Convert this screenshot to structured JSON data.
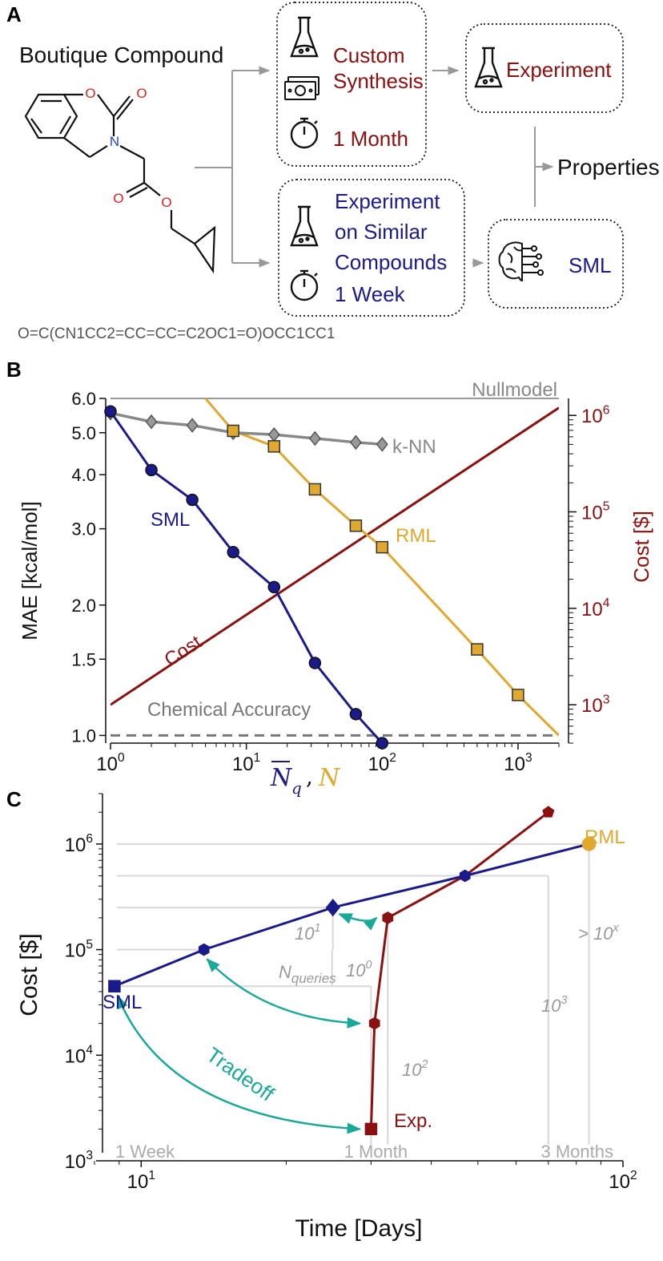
{
  "panel_labels": [
    "A",
    "B",
    "C"
  ],
  "panel_a": {
    "compound_title": "Boutique Compound",
    "smiles": "O=C(CN1CC2=CC=CC=C2OC1=O)OCC1CC1",
    "atom_labels": {
      "o_ring": "O",
      "o_carbonyl": "O",
      "n": "N",
      "o_ester_carbonyl": "O",
      "o_ester": "O"
    },
    "custom_synthesis": [
      "Custom",
      "Synthesis"
    ],
    "one_month": "1 Month",
    "experiment": "Experiment",
    "properties": "Properties",
    "similar": [
      "Experiment",
      "on Similar",
      "Compounds"
    ],
    "one_week": "1 Week",
    "sml": "SML",
    "colors": {
      "dark_red": "#8b1010",
      "navy": "#1a1a8a",
      "gray": "#888888"
    }
  },
  "chart_data": [
    {
      "type": "line",
      "panel": "B",
      "ylabel_left": "MAE [kcal/mol]",
      "ylabel_right": "Cost [$]",
      "xlabel_main": "N",
      "xlabel_sub": "q",
      "xlabel_sep": ",",
      "xlabel_second": "N",
      "x_scale": "log",
      "xlim": [
        1,
        2000
      ],
      "y_scale": "log",
      "ylim": [
        0.96,
        6.0
      ],
      "y2_scale": "log",
      "y2lim": [
        400,
        1500000
      ],
      "x_ticks": [
        {
          "value": 1,
          "base": "10",
          "exp": "0"
        },
        {
          "value": 10,
          "base": "10",
          "exp": "1"
        },
        {
          "value": 100,
          "base": "10",
          "exp": "2"
        },
        {
          "value": 1000,
          "base": "10",
          "exp": "3"
        }
      ],
      "y_ticks": [
        {
          "value": 1.0,
          "label": "1.0"
        },
        {
          "value": 1.5,
          "label": "1.5"
        },
        {
          "value": 2.0,
          "label": "2.0"
        },
        {
          "value": 3.0,
          "label": "3.0"
        },
        {
          "value": 4.0,
          "label": "4.0"
        },
        {
          "value": 5.0,
          "label": "5.0"
        },
        {
          "value": 6.0,
          "label": "6.0"
        }
      ],
      "y2_ticks": [
        {
          "value": 1000,
          "base": "10",
          "exp": "3"
        },
        {
          "value": 10000,
          "base": "10",
          "exp": "4"
        },
        {
          "value": 100000,
          "base": "10",
          "exp": "5"
        },
        {
          "value": 1000000,
          "base": "10",
          "exp": "6"
        }
      ],
      "series": [
        {
          "name": "SML",
          "color": "#1a1a8a",
          "marker": "circle",
          "x": [
            1,
            2,
            4,
            8,
            16,
            32,
            64,
            100
          ],
          "y": [
            5.6,
            4.1,
            3.5,
            2.65,
            2.2,
            1.47,
            1.12,
            0.96
          ]
        },
        {
          "name": "RML",
          "color": "#e0a82e",
          "marker": "square",
          "x": [
            8,
            16,
            32,
            64,
            100,
            500,
            1000
          ],
          "y": [
            5.05,
            4.65,
            3.7,
            3.05,
            2.72,
            1.58,
            1.24
          ],
          "line_x": [
            5,
            8,
            16,
            32,
            64,
            100,
            500,
            1000,
            2000
          ],
          "line_y": [
            6.0,
            5.05,
            4.65,
            3.7,
            3.05,
            2.72,
            1.58,
            1.24,
            1.0
          ]
        },
        {
          "name": "k-NN",
          "color": "#888888",
          "marker": "diamond",
          "x": [
            1,
            2,
            4,
            8,
            16,
            32,
            64,
            100
          ],
          "y": [
            5.55,
            5.3,
            5.2,
            5.0,
            4.95,
            4.85,
            4.75,
            4.7
          ]
        }
      ],
      "cost_line": {
        "name": "Cost",
        "color": "#8b1010",
        "x": [
          1,
          2000
        ],
        "y2": [
          1000,
          1200000
        ]
      },
      "nullmodel": {
        "label": "Nullmodel",
        "y": 6.0
      },
      "chemical_accuracy": {
        "label": "Chemical Accuracy",
        "y": 1.0
      }
    },
    {
      "type": "line",
      "panel": "C",
      "xlabel": "Time [Days]",
      "ylabel": "Cost [$]",
      "x_scale": "log",
      "xlim": [
        8,
        100
      ],
      "y_scale": "log",
      "ylim": [
        1000,
        3000000
      ],
      "x_ticks": [
        {
          "value": 10,
          "base": "10",
          "exp": "1"
        },
        {
          "value": 100,
          "base": "10",
          "exp": "2"
        }
      ],
      "y_ticks": [
        {
          "value": 1000,
          "base": "10",
          "exp": "3"
        },
        {
          "value": 10000,
          "base": "10",
          "exp": "4"
        },
        {
          "value": 100000,
          "base": "10",
          "exp": "5"
        },
        {
          "value": 1000000,
          "base": "10",
          "exp": "6"
        }
      ],
      "series": [
        {
          "name": "SML",
          "color": "#1a1a8a",
          "x": [
            8.8,
            13.5,
            25,
            47
          ],
          "y": [
            45000,
            100000,
            250000,
            500000
          ],
          "markers": [
            "square",
            "hexagon",
            "diamond",
            "hexagon"
          ]
        },
        {
          "name": "RML",
          "color": "#e0a82e",
          "x": [
            47,
            85
          ],
          "y": [
            500000,
            1000000
          ],
          "line_color": "#1a1a8a",
          "marker": "circle"
        },
        {
          "name": "Exp.",
          "color": "#8b1010",
          "x": [
            30,
            30,
            30.5,
            32.5,
            47,
            70
          ],
          "y": [
            2000,
            2000,
            20000,
            200000,
            500000,
            2000000
          ],
          "markers": [
            "square",
            "none",
            "hexagon",
            "hexagon",
            "none",
            "pentagon"
          ]
        }
      ],
      "time_labels": [
        {
          "label": "1 Week",
          "x": 7
        },
        {
          "label": "1 Month",
          "x": 30
        },
        {
          "label": "3 Months",
          "x": 90
        }
      ],
      "bracket_labels": [
        {
          "base": "10",
          "exp": "0"
        },
        {
          "base": "10",
          "exp": "1"
        },
        {
          "base": "10",
          "exp": "2"
        },
        {
          "base": "10",
          "exp": "3"
        },
        {
          "base": "> 10",
          "exp": "x"
        }
      ],
      "nqueries": {
        "base": "N",
        "sub": "queries"
      },
      "tradeoff_label": "Tradeoff",
      "tradeoff_color": "#1aa899"
    }
  ]
}
